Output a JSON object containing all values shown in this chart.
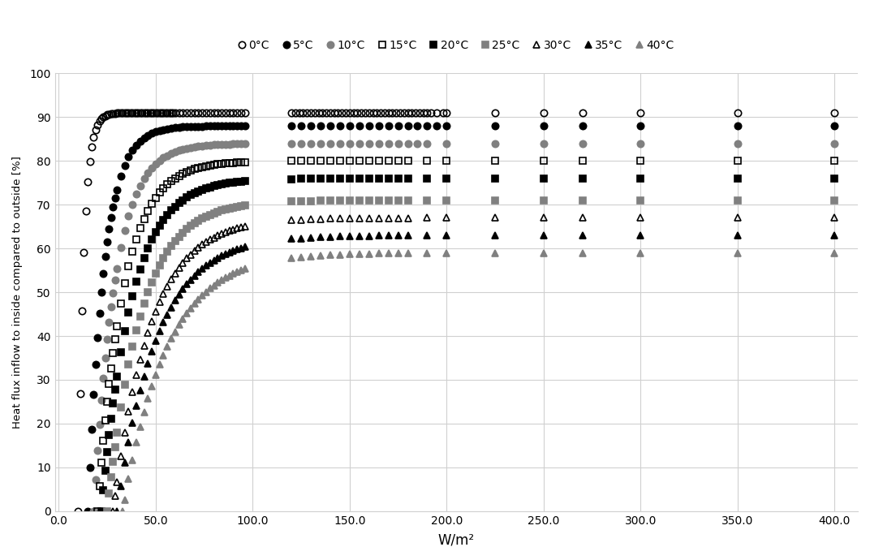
{
  "series": [
    {
      "label": "0°C",
      "color": "black",
      "marker": "o",
      "fillstyle": "none",
      "max_y": 91.0,
      "x_start": 10.0,
      "k": 0.35,
      "dense_x": [
        10,
        11,
        12,
        13,
        14,
        15,
        16,
        17,
        18,
        19,
        20,
        21,
        22,
        23,
        24,
        25,
        26,
        27,
        28,
        29,
        30,
        31,
        32,
        33,
        34,
        35,
        36,
        37,
        38,
        39,
        40,
        41,
        42,
        43,
        44,
        45,
        46,
        47,
        48,
        49,
        50,
        51,
        52,
        53,
        54,
        55,
        56,
        57,
        58,
        59,
        60,
        62,
        64,
        66,
        68,
        70,
        72,
        74,
        76,
        78,
        80,
        82,
        84,
        86,
        88,
        90,
        92,
        94,
        96
      ],
      "sparse_x": [
        120,
        122,
        124,
        126,
        128,
        130,
        132,
        134,
        136,
        138,
        140,
        142,
        144,
        146,
        148,
        150,
        152,
        154,
        156,
        158,
        160,
        162,
        164,
        166,
        168,
        170,
        172,
        174,
        176,
        178,
        180,
        182,
        184,
        186,
        188,
        190,
        192,
        195,
        198,
        200,
        225,
        250,
        270,
        300,
        350,
        400
      ]
    },
    {
      "label": "5°C",
      "color": "black",
      "marker": "o",
      "fillstyle": "full",
      "max_y": 88.0,
      "x_start": 15.0,
      "k": 0.12,
      "dense_x": [
        15,
        16,
        17,
        18,
        19,
        20,
        21,
        22,
        23,
        24,
        25,
        26,
        27,
        28,
        29,
        30,
        32,
        34,
        36,
        38,
        40,
        42,
        44,
        46,
        48,
        50,
        52,
        54,
        56,
        58,
        60,
        62,
        64,
        66,
        68,
        70,
        72,
        74,
        76,
        78,
        80,
        82,
        84,
        86,
        88,
        90,
        92,
        94,
        96
      ],
      "sparse_x": [
        120,
        125,
        130,
        135,
        140,
        145,
        150,
        155,
        160,
        165,
        170,
        175,
        180,
        185,
        190,
        195,
        200,
        225,
        250,
        270,
        300,
        350,
        400
      ]
    },
    {
      "label": "10°C",
      "color": "#808080",
      "marker": "o",
      "fillstyle": "full",
      "max_y": 84.0,
      "x_start": 18.0,
      "k": 0.09,
      "dense_x": [
        18,
        19,
        20,
        21,
        22,
        23,
        24,
        25,
        26,
        27,
        28,
        29,
        30,
        32,
        34,
        36,
        38,
        40,
        42,
        44,
        46,
        48,
        50,
        52,
        54,
        56,
        58,
        60,
        62,
        64,
        66,
        68,
        70,
        72,
        74,
        76,
        78,
        80,
        82,
        84,
        86,
        88,
        90,
        92,
        94,
        96
      ],
      "sparse_x": [
        120,
        125,
        130,
        135,
        140,
        145,
        150,
        155,
        160,
        165,
        170,
        175,
        180,
        185,
        190,
        200,
        225,
        250,
        270,
        300,
        350,
        400
      ]
    },
    {
      "label": "15°C",
      "color": "black",
      "marker": "s",
      "fillstyle": "none",
      "max_y": 80.0,
      "x_start": 20.0,
      "k": 0.075,
      "dense_x": [
        20,
        21,
        22,
        23,
        24,
        25,
        26,
        27,
        28,
        29,
        30,
        32,
        34,
        36,
        38,
        40,
        42,
        44,
        46,
        48,
        50,
        52,
        54,
        56,
        58,
        60,
        62,
        64,
        66,
        68,
        70,
        72,
        74,
        76,
        78,
        80,
        82,
        84,
        86,
        88,
        90,
        92,
        94,
        96
      ],
      "sparse_x": [
        120,
        125,
        130,
        135,
        140,
        145,
        150,
        155,
        160,
        165,
        170,
        175,
        180,
        190,
        200,
        225,
        250,
        270,
        300,
        350,
        400
      ]
    },
    {
      "label": "20°C",
      "color": "black",
      "marker": "s",
      "fillstyle": "full",
      "max_y": 76.0,
      "x_start": 22.0,
      "k": 0.065,
      "dense_x": [
        22,
        23,
        24,
        25,
        26,
        27,
        28,
        29,
        30,
        32,
        34,
        36,
        38,
        40,
        42,
        44,
        46,
        48,
        50,
        52,
        54,
        56,
        58,
        60,
        62,
        64,
        66,
        68,
        70,
        72,
        74,
        76,
        78,
        80,
        82,
        84,
        86,
        88,
        90,
        92,
        94,
        96
      ],
      "sparse_x": [
        120,
        125,
        130,
        135,
        140,
        145,
        150,
        155,
        160,
        165,
        170,
        175,
        180,
        190,
        200,
        225,
        250,
        270,
        300,
        350,
        400
      ]
    },
    {
      "label": "25°C",
      "color": "#808080",
      "marker": "s",
      "fillstyle": "full",
      "max_y": 71.0,
      "x_start": 25.0,
      "k": 0.058,
      "dense_x": [
        25,
        26,
        27,
        28,
        29,
        30,
        32,
        34,
        36,
        38,
        40,
        42,
        44,
        46,
        48,
        50,
        52,
        54,
        56,
        58,
        60,
        62,
        64,
        66,
        68,
        70,
        72,
        74,
        76,
        78,
        80,
        82,
        84,
        86,
        88,
        90,
        92,
        94,
        96
      ],
      "sparse_x": [
        120,
        125,
        130,
        135,
        140,
        145,
        150,
        155,
        160,
        165,
        170,
        175,
        180,
        190,
        200,
        225,
        250,
        270,
        300,
        350,
        400
      ]
    },
    {
      "label": "30°C",
      "color": "black",
      "marker": "^",
      "fillstyle": "none",
      "max_y": 67.0,
      "x_start": 28.0,
      "k": 0.052,
      "dense_x": [
        28,
        29,
        30,
        32,
        34,
        36,
        38,
        40,
        42,
        44,
        46,
        48,
        50,
        52,
        54,
        56,
        58,
        60,
        62,
        64,
        66,
        68,
        70,
        72,
        74,
        76,
        78,
        80,
        82,
        84,
        86,
        88,
        90,
        92,
        94,
        96
      ],
      "sparse_x": [
        120,
        125,
        130,
        135,
        140,
        145,
        150,
        155,
        160,
        165,
        170,
        175,
        180,
        190,
        200,
        225,
        250,
        270,
        300,
        350,
        400
      ]
    },
    {
      "label": "35°C",
      "color": "black",
      "marker": "^",
      "fillstyle": "full",
      "max_y": 63.0,
      "x_start": 30.0,
      "k": 0.048,
      "dense_x": [
        30,
        32,
        34,
        36,
        38,
        40,
        42,
        44,
        46,
        48,
        50,
        52,
        54,
        56,
        58,
        60,
        62,
        64,
        66,
        68,
        70,
        72,
        74,
        76,
        78,
        80,
        82,
        84,
        86,
        88,
        90,
        92,
        94,
        96
      ],
      "sparse_x": [
        120,
        125,
        130,
        135,
        140,
        145,
        150,
        155,
        160,
        165,
        170,
        175,
        180,
        190,
        200,
        225,
        250,
        270,
        300,
        350,
        400
      ]
    },
    {
      "label": "40°C",
      "color": "#808080",
      "marker": "^",
      "fillstyle": "full",
      "max_y": 59.0,
      "x_start": 33.0,
      "k": 0.044,
      "dense_x": [
        33,
        34,
        36,
        38,
        40,
        42,
        44,
        46,
        48,
        50,
        52,
        54,
        56,
        58,
        60,
        62,
        64,
        66,
        68,
        70,
        72,
        74,
        76,
        78,
        80,
        82,
        84,
        86,
        88,
        90,
        92,
        94,
        96
      ],
      "sparse_x": [
        120,
        125,
        130,
        135,
        140,
        145,
        150,
        155,
        160,
        165,
        170,
        175,
        180,
        190,
        200,
        225,
        250,
        270,
        300,
        350,
        400
      ]
    }
  ],
  "xlabel": "W/m²",
  "ylabel": "Heat flux inflow to inside compared to outside [%]",
  "xlim": [
    -2,
    412
  ],
  "ylim": [
    0,
    100
  ],
  "xticks": [
    0.0,
    50.0,
    100.0,
    150.0,
    200.0,
    250.0,
    300.0,
    350.0,
    400.0
  ],
  "xtick_labels": [
    "0.0",
    "50.0",
    "100.0",
    "150.0",
    "200.0",
    "250.0",
    "300.0",
    "350.0",
    "400.0"
  ],
  "yticks": [
    0,
    10,
    20,
    30,
    40,
    50,
    60,
    70,
    80,
    90,
    100
  ],
  "background_color": "#ffffff",
  "grid_color": "#d0d0d0",
  "markersize": 6
}
